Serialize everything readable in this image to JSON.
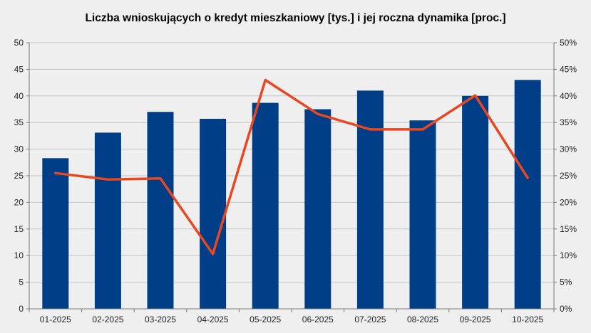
{
  "chart_data": {
    "type": "bar",
    "title": "Liczba wnioskujących o kredyt mieszkaniowy [tys.] i jej roczna dynamika [proc.]",
    "categories": [
      "01-2025",
      "02-2025",
      "03-2025",
      "04-2025",
      "05-2025",
      "06-2025",
      "07-2025",
      "08-2025",
      "09-2025",
      "10-2025"
    ],
    "series": [
      {
        "type": "bar",
        "axis": "left",
        "color": "#003f87",
        "values": [
          28.3,
          33.1,
          37.0,
          35.7,
          38.7,
          37.5,
          41.0,
          35.4,
          40.0,
          43.0
        ]
      },
      {
        "type": "line",
        "axis": "right",
        "color": "#e8471f",
        "values": [
          25.5,
          24.3,
          24.5,
          10.3,
          43.0,
          36.6,
          33.7,
          33.7,
          40.1,
          24.6
        ]
      }
    ],
    "y_left": {
      "min": 0,
      "max": 50,
      "ticks": [
        "0",
        "5",
        "10",
        "15",
        "20",
        "25",
        "30",
        "35",
        "40",
        "45",
        "50"
      ]
    },
    "y_right": {
      "min": 0,
      "max": 50,
      "ticks": [
        "0%",
        "5%",
        "10%",
        "15%",
        "20%",
        "25%",
        "30%",
        "35%",
        "40%",
        "45%",
        "50%"
      ]
    },
    "grid": true,
    "legend": "none"
  }
}
